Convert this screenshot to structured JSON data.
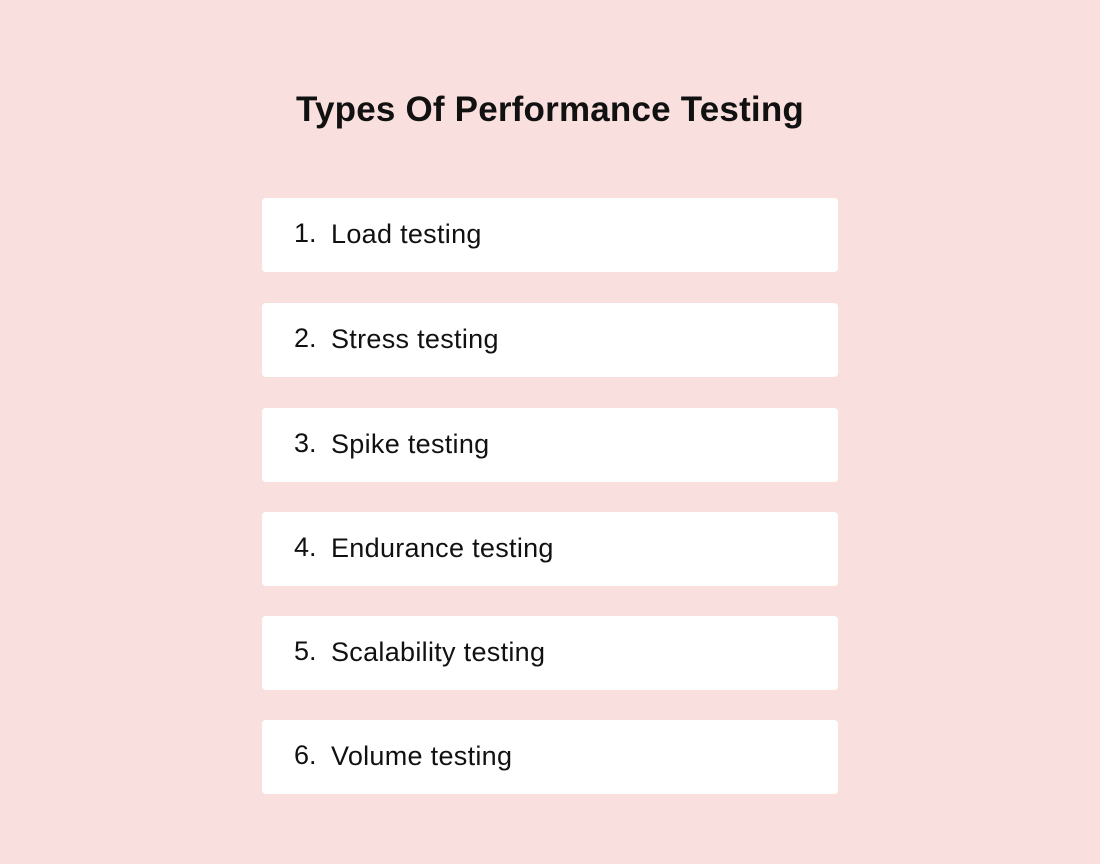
{
  "title": "Types Of Performance Testing",
  "items": [
    {
      "number": "1.",
      "label": "Load testing"
    },
    {
      "number": "2.",
      "label": "Stress testing"
    },
    {
      "number": "3.",
      "label": "Spike testing"
    },
    {
      "number": "4.",
      "label": "Endurance testing"
    },
    {
      "number": "5.",
      "label": "Scalability testing"
    },
    {
      "number": "6.",
      "label": "Volume testing"
    }
  ],
  "colors": {
    "background": "#f9e0de",
    "card": "#ffffff",
    "text": "#111111"
  }
}
